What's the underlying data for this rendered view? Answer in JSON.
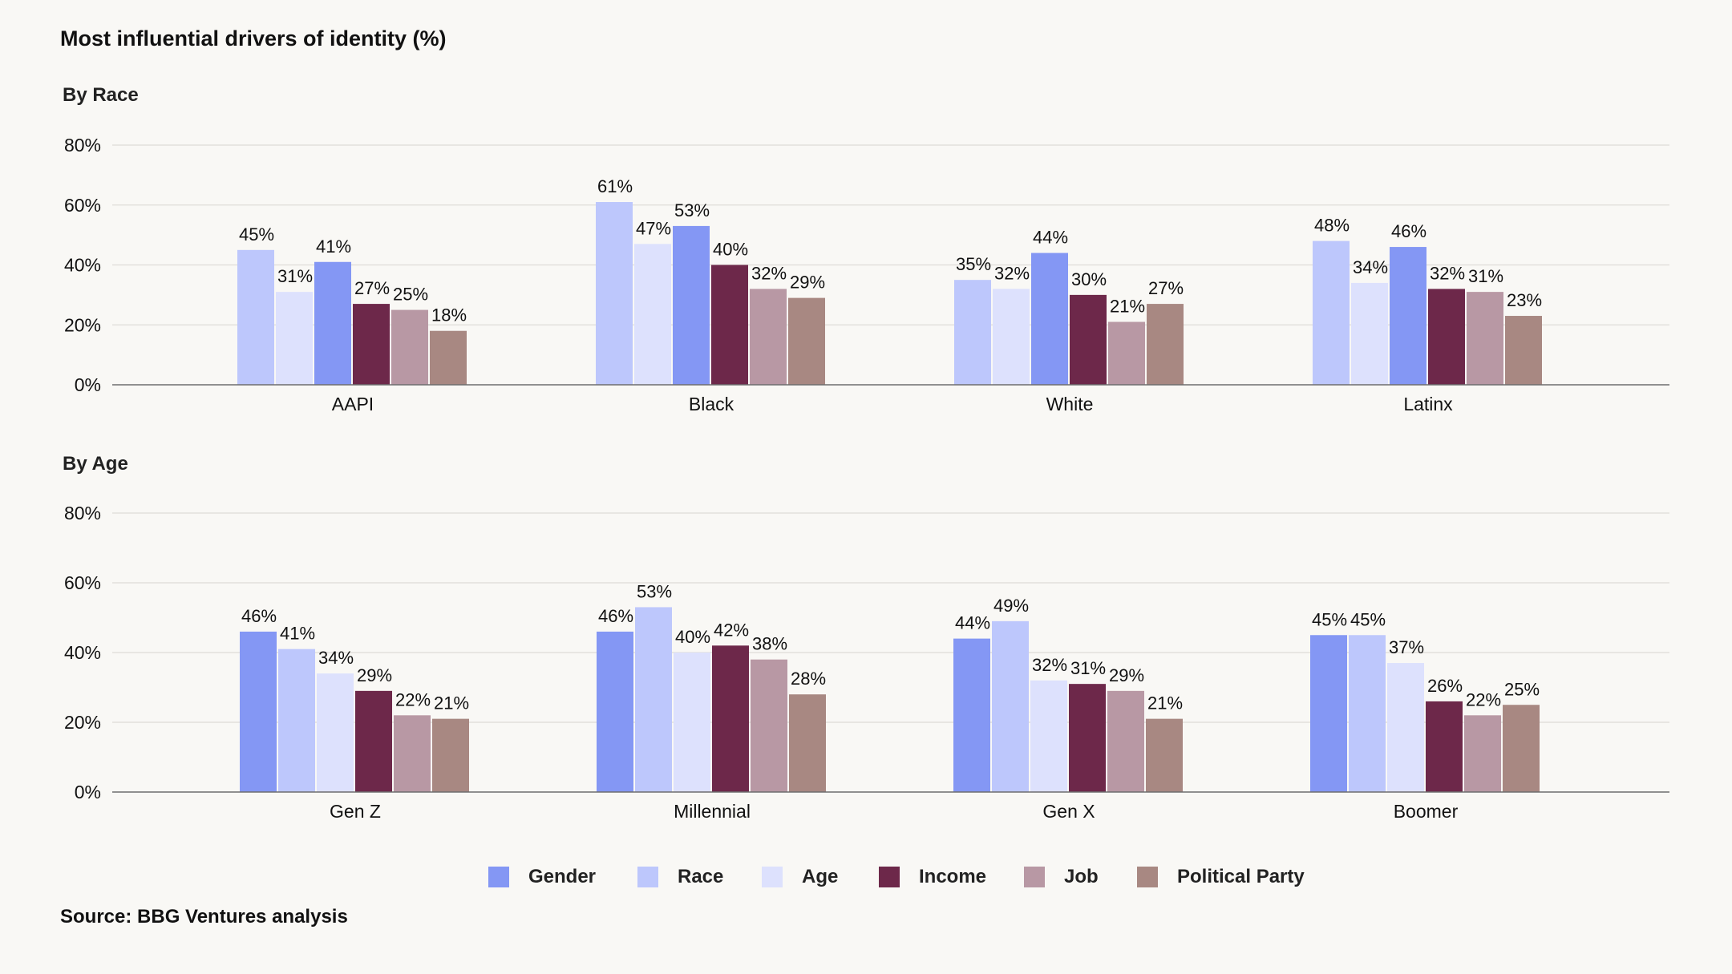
{
  "title": "Most influential drivers of identity (%)",
  "source": "Source: BBG Ventures analysis",
  "colors": {
    "Gender": "#8497f4",
    "Race": "#bdc7fc",
    "Age": "#dde1fd",
    "Income": "#6d284a",
    "Job": "#b898a4",
    "Political Party": "#a88882"
  },
  "legend": [
    "Gender",
    "Race",
    "Age",
    "Income",
    "Job",
    "Political Party"
  ],
  "chart_data": [
    {
      "type": "bar",
      "title": "By Race",
      "categories": [
        "AAPI",
        "Black",
        "White",
        "Latinx"
      ],
      "ylim": [
        0,
        80
      ],
      "yticks": [
        "0%",
        "20%",
        "40%",
        "60%",
        "80%"
      ],
      "series": [
        {
          "name": "Race",
          "values": [
            45,
            61,
            35,
            48
          ],
          "labels": [
            "45%",
            "61%",
            "35%",
            "48%"
          ]
        },
        {
          "name": "Age",
          "values": [
            31,
            47,
            32,
            34
          ],
          "labels": [
            "31%",
            "47%",
            "32%",
            "34%"
          ]
        },
        {
          "name": "Gender",
          "values": [
            41,
            53,
            44,
            46
          ],
          "labels": [
            "41%",
            "53%",
            "44%",
            "46%"
          ]
        },
        {
          "name": "Income",
          "values": [
            27,
            40,
            30,
            32
          ],
          "labels": [
            "27%",
            "40%",
            "30%",
            "32%"
          ]
        },
        {
          "name": "Job",
          "values": [
            25,
            32,
            21,
            31
          ],
          "labels": [
            "25%",
            "32%",
            "21%",
            "31%"
          ]
        },
        {
          "name": "Political Party",
          "values": [
            18,
            29,
            27,
            23
          ],
          "labels": [
            "18%",
            "29%",
            "27%",
            "23%"
          ]
        }
      ]
    },
    {
      "type": "bar",
      "title": "By Age",
      "categories": [
        "Gen Z",
        "Millennial",
        "Gen X",
        "Boomer"
      ],
      "ylim": [
        0,
        80
      ],
      "yticks": [
        "0%",
        "20%",
        "40%",
        "60%",
        "80%"
      ],
      "series": [
        {
          "name": "Gender",
          "values": [
            46,
            46,
            44,
            45
          ],
          "labels": [
            "46%",
            "46%",
            "44%",
            "45%"
          ]
        },
        {
          "name": "Race",
          "values": [
            41,
            53,
            49,
            45
          ],
          "labels": [
            "41%",
            "53%",
            "49%",
            "45%"
          ]
        },
        {
          "name": "Age",
          "values": [
            34,
            40,
            32,
            37
          ],
          "labels": [
            "34%",
            "40%",
            "32%",
            "37%"
          ]
        },
        {
          "name": "Income",
          "values": [
            29,
            42,
            31,
            26
          ],
          "labels": [
            "29%",
            "42%",
            "31%",
            "26%"
          ]
        },
        {
          "name": "Job",
          "values": [
            22,
            38,
            29,
            22
          ],
          "labels": [
            "22%",
            "38%",
            "29%",
            "22%"
          ]
        },
        {
          "name": "Political Party",
          "values": [
            21,
            28,
            21,
            25
          ],
          "labels": [
            "21%",
            "28%",
            "21%",
            "25%"
          ]
        }
      ]
    }
  ]
}
